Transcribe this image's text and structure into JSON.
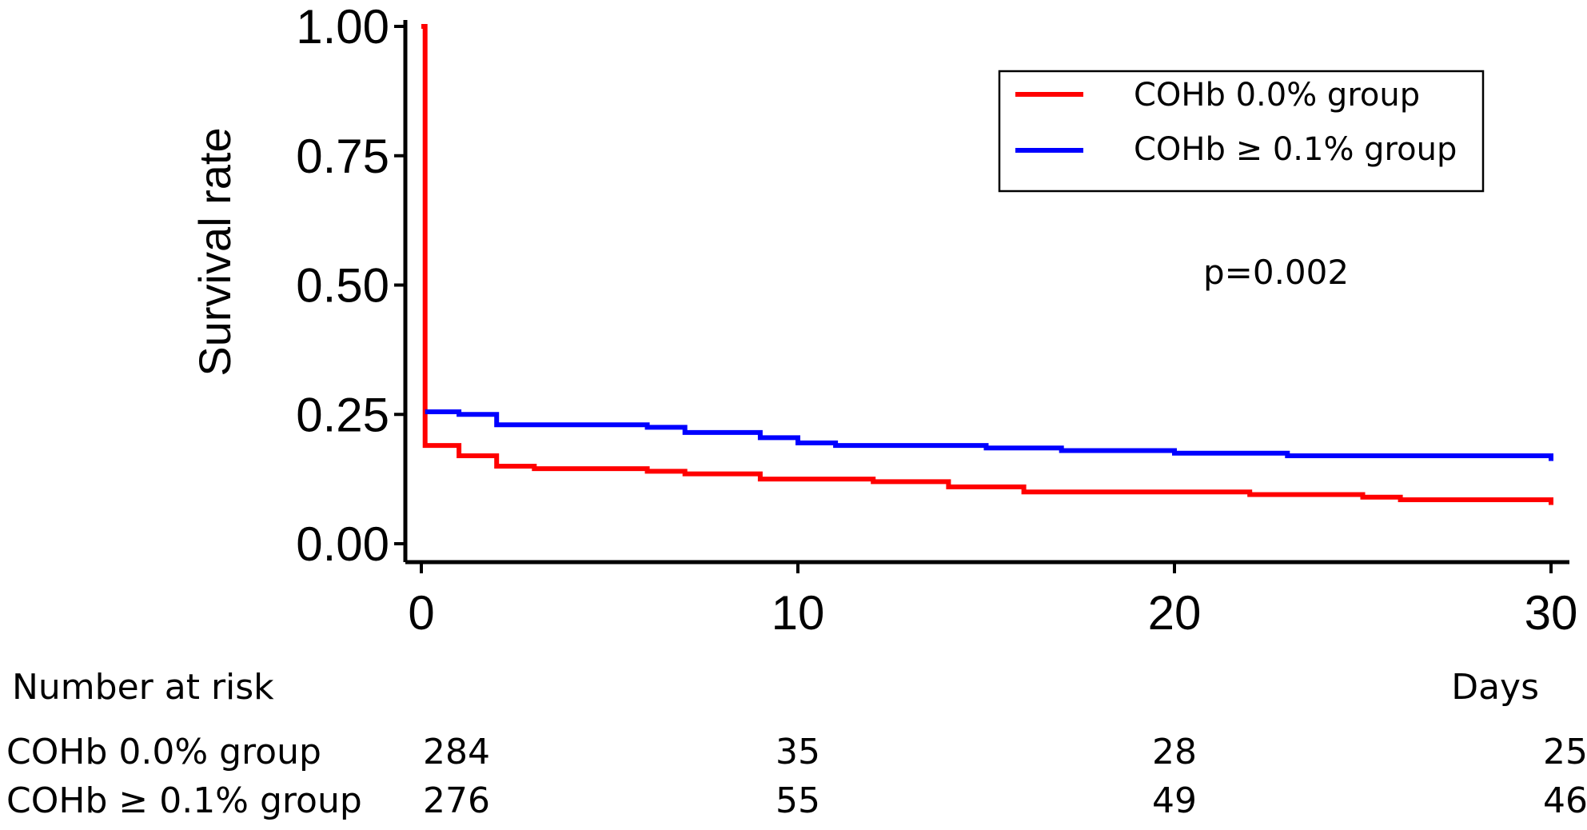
{
  "chart_data": {
    "type": "line",
    "step": true,
    "ylabel": "Survival rate",
    "xlim": [
      0,
      30
    ],
    "ylim": [
      0,
      1
    ],
    "x_ticks": [
      "0",
      "10",
      "20",
      "30"
    ],
    "y_ticks": [
      "0.00",
      "0.25",
      "0.50",
      "0.75",
      "1.00"
    ],
    "x_tick_values": [
      0,
      10,
      20,
      30
    ],
    "y_tick_values": [
      0,
      0.25,
      0.5,
      0.75,
      1.0
    ],
    "legend_position": "top-right",
    "annotation": "p=0.002",
    "series": [
      {
        "name": "COHb 0.0% group",
        "color": "#ff0000",
        "x": [
          0,
          0.1,
          1,
          2,
          3,
          6,
          7,
          9,
          12,
          14,
          16,
          22,
          25,
          26,
          30,
          30
        ],
        "y": [
          1.0,
          0.19,
          0.17,
          0.15,
          0.145,
          0.14,
          0.135,
          0.125,
          0.12,
          0.11,
          0.1,
          0.095,
          0.09,
          0.085,
          0.085,
          0.075
        ]
      },
      {
        "name": "COHb ≥ 0.1% group",
        "color": "#0000ff",
        "x": [
          0.1,
          1,
          2,
          6,
          7,
          9,
          10,
          11,
          15,
          17,
          20,
          23,
          30,
          30
        ],
        "y": [
          0.255,
          0.25,
          0.23,
          0.225,
          0.215,
          0.205,
          0.195,
          0.19,
          0.185,
          0.18,
          0.175,
          0.17,
          0.165,
          0.16
        ]
      }
    ]
  },
  "risk_table": {
    "title": "Number at risk",
    "x_unit": "Days",
    "rows": [
      {
        "label": "COHb 0.0% group",
        "values": [
          "284",
          "35",
          "28",
          "25"
        ]
      },
      {
        "label": "COHb ≥ 0.1% group",
        "values": [
          "276",
          "55",
          "49",
          "46"
        ]
      }
    ]
  }
}
